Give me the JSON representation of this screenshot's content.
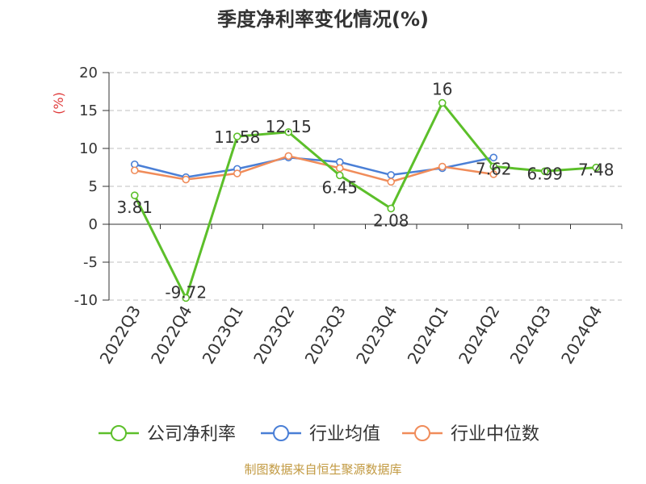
{
  "chart_data": {
    "type": "line",
    "title": "季度净利率变化情况(%)",
    "xlabel": "",
    "ylabel": "(%)",
    "ylim": [
      -10,
      20
    ],
    "yticks": [
      -10,
      -5,
      0,
      5,
      10,
      15,
      20
    ],
    "grid": true,
    "legend_position": "bottom",
    "categories": [
      "2022Q3",
      "2022Q4",
      "2023Q1",
      "2023Q2",
      "2023Q3",
      "2023Q4",
      "2024Q1",
      "2024Q2",
      "2024Q3",
      "2024Q4"
    ],
    "series": [
      {
        "name": "公司净利率",
        "color": "#5cbf2a",
        "values": [
          3.81,
          -9.72,
          11.58,
          12.15,
          6.45,
          2.08,
          16,
          7.62,
          6.99,
          7.48
        ],
        "labels": [
          "3.81",
          "-9.72",
          "11.58",
          "12.15",
          "6.45",
          "2.08",
          "16",
          "7.62",
          "6.99",
          "7.48"
        ]
      },
      {
        "name": "行业均值",
        "color": "#4a7fd6",
        "values": [
          7.9,
          6.2,
          7.3,
          8.8,
          8.2,
          6.5,
          7.4,
          8.8,
          null,
          null
        ]
      },
      {
        "name": "行业中位数",
        "color": "#f08c5a",
        "values": [
          7.1,
          5.9,
          6.7,
          9.0,
          7.4,
          5.6,
          7.6,
          6.6,
          null,
          null
        ]
      }
    ]
  },
  "footer": "制图数据来自恒生聚源数据库"
}
